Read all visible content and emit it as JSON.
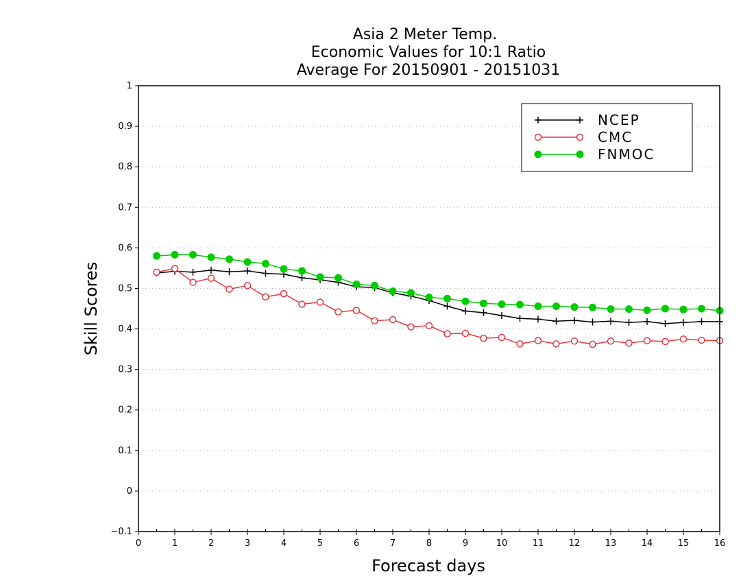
{
  "chart_data": {
    "type": "line",
    "title": [
      "Asia 2 Meter Temp.",
      "Economic Values for 10:1 Ratio",
      "Average For 20150901 - 20151031"
    ],
    "xlabel": "Forecast days",
    "ylabel": "Skill Scores",
    "xlim": [
      0,
      16
    ],
    "ylim": [
      -0.1,
      1
    ],
    "xticks": [
      0,
      1,
      2,
      3,
      4,
      5,
      6,
      7,
      8,
      9,
      10,
      11,
      12,
      13,
      14,
      15,
      16
    ],
    "yticks": [
      -0.1,
      0,
      0.1,
      0.2,
      0.3,
      0.4,
      0.5,
      0.6,
      0.7,
      0.8,
      0.9,
      1
    ],
    "ytick_labels": [
      "−0.1",
      "0",
      "0.1",
      "0.2",
      "0.3",
      "0.4",
      "0.5",
      "0.6",
      "0.7",
      "0.8",
      "0.9",
      "1"
    ],
    "grid": true,
    "legend_position": "top-right",
    "x": [
      0.5,
      1,
      1.5,
      2,
      2.5,
      3,
      3.5,
      4,
      4.5,
      5,
      5.5,
      6,
      6.5,
      7,
      7.5,
      8,
      8.5,
      9,
      9.5,
      10,
      10.5,
      11,
      11.5,
      12,
      12.5,
      13,
      13.5,
      14,
      14.5,
      15,
      15.5,
      16
    ],
    "series": [
      {
        "name": "NCEP",
        "color": "#000000",
        "marker": "plus",
        "values": [
          0.538,
          0.542,
          0.54,
          0.545,
          0.541,
          0.543,
          0.537,
          0.535,
          0.526,
          0.521,
          0.515,
          0.504,
          0.502,
          0.489,
          0.481,
          0.47,
          0.456,
          0.444,
          0.44,
          0.433,
          0.426,
          0.424,
          0.419,
          0.421,
          0.417,
          0.419,
          0.416,
          0.418,
          0.413,
          0.416,
          0.418,
          0.418
        ]
      },
      {
        "name": "CMC",
        "color": "#e8353d",
        "marker": "open-circle",
        "values": [
          0.54,
          0.549,
          0.515,
          0.525,
          0.498,
          0.507,
          0.479,
          0.487,
          0.461,
          0.466,
          0.442,
          0.446,
          0.42,
          0.423,
          0.405,
          0.408,
          0.388,
          0.389,
          0.377,
          0.379,
          0.363,
          0.371,
          0.363,
          0.37,
          0.362,
          0.37,
          0.365,
          0.371,
          0.369,
          0.375,
          0.372,
          0.371
        ]
      },
      {
        "name": "FNMOC",
        "color": "#00cc00",
        "marker": "filled-circle",
        "values": [
          0.58,
          0.583,
          0.583,
          0.577,
          0.572,
          0.565,
          0.561,
          0.548,
          0.543,
          0.528,
          0.526,
          0.51,
          0.507,
          0.493,
          0.489,
          0.478,
          0.475,
          0.468,
          0.463,
          0.461,
          0.46,
          0.456,
          0.456,
          0.454,
          0.453,
          0.449,
          0.449,
          0.446,
          0.45,
          0.448,
          0.45,
          0.445
        ]
      }
    ]
  }
}
